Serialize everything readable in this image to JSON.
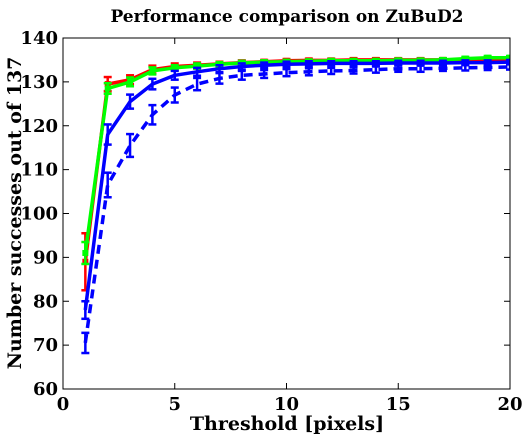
{
  "chart_data": {
    "type": "line",
    "title": "Performance comparison on ZuBuD2",
    "xlabel": "Threshold [pixels]",
    "ylabel": "Number successes out of 137",
    "xlim": [
      0,
      20
    ],
    "ylim": [
      60,
      140
    ],
    "xticks": [
      0,
      5,
      10,
      15,
      20
    ],
    "yticks": [
      60,
      70,
      80,
      90,
      100,
      110,
      120,
      130,
      140
    ],
    "grid": false,
    "legend": "none",
    "x": [
      1,
      2,
      3,
      4,
      5,
      6,
      7,
      8,
      9,
      10,
      11,
      12,
      13,
      14,
      15,
      16,
      17,
      18,
      19,
      20
    ],
    "series": [
      {
        "color": "#ff0000",
        "style": "solid",
        "marker": "square",
        "values": [
          89,
          129.5,
          130.5,
          132.8,
          133.5,
          133.8,
          134.1,
          134.4,
          134.6,
          134.8,
          134.9,
          134.9,
          135.0,
          135.0,
          135.0,
          135.0,
          135.0,
          135.0,
          135.0,
          135.0
        ],
        "errors": [
          6.5,
          1.6,
          1.0,
          0.9,
          0.7,
          0.6,
          0.5,
          0.5,
          0.4,
          0.4,
          0.4,
          0.4,
          0.4,
          0.4,
          0.4,
          0.4,
          0.4,
          0.4,
          0.4,
          0.4
        ]
      },
      {
        "color": "#00ff00",
        "style": "solid",
        "marker": "square",
        "values": [
          91,
          128.5,
          130.0,
          132.5,
          133.2,
          133.6,
          134.0,
          134.3,
          134.5,
          134.6,
          134.7,
          134.8,
          134.8,
          134.8,
          134.9,
          134.9,
          135.0,
          135.3,
          135.5,
          135.5
        ],
        "errors": [
          2.5,
          1.2,
          1.0,
          0.8,
          0.6,
          0.6,
          0.5,
          0.5,
          0.4,
          0.4,
          0.4,
          0.4,
          0.4,
          0.4,
          0.4,
          0.4,
          0.4,
          0.4,
          0.4,
          0.4
        ]
      },
      {
        "color": "#0000ff",
        "style": "solid",
        "marker": "none",
        "values": [
          78,
          118,
          125.5,
          129.5,
          131.5,
          132.3,
          133.0,
          133.5,
          133.8,
          134.0,
          134.1,
          134.2,
          134.2,
          134.2,
          134.3,
          134.3,
          134.3,
          134.4,
          134.4,
          134.5
        ],
        "errors": [
          2.0,
          2.3,
          1.6,
          1.2,
          1.0,
          0.9,
          0.8,
          0.7,
          0.6,
          0.6,
          0.6,
          0.5,
          0.5,
          0.5,
          0.5,
          0.5,
          0.5,
          0.5,
          0.5,
          0.5
        ]
      },
      {
        "color": "#0000ff",
        "style": "dashed",
        "marker": "none",
        "values": [
          70.5,
          106.5,
          115.5,
          122.5,
          127.0,
          129.5,
          130.8,
          131.5,
          131.8,
          132.1,
          132.3,
          132.5,
          132.6,
          132.8,
          133.0,
          133.0,
          133.1,
          133.2,
          133.3,
          133.4
        ],
        "errors": [
          2.3,
          2.8,
          2.6,
          2.2,
          1.7,
          1.4,
          1.2,
          1.0,
          0.9,
          0.8,
          0.8,
          0.7,
          0.7,
          0.7,
          0.7,
          0.7,
          0.6,
          0.6,
          0.6,
          0.6
        ]
      }
    ]
  }
}
